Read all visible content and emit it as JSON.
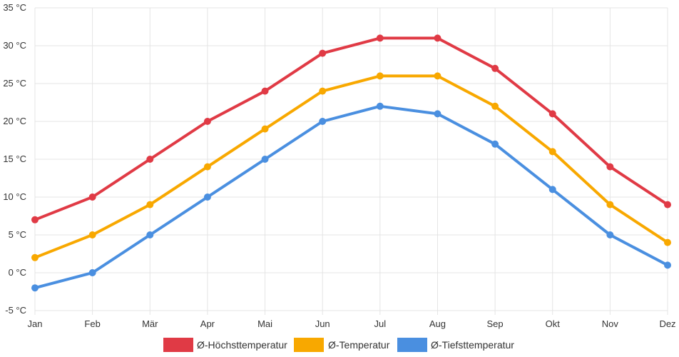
{
  "chart_data": {
    "type": "line",
    "title": "",
    "xlabel": "",
    "ylabel": "",
    "categories": [
      "Jan",
      "Feb",
      "Mär",
      "Apr",
      "Mai",
      "Jun",
      "Jul",
      "Aug",
      "Sep",
      "Okt",
      "Nov",
      "Dez"
    ],
    "y_unit": "°C",
    "ylim": [
      -5,
      35
    ],
    "ytick_step": 5,
    "y_tick_labels": [
      "-5 °C",
      "0 °C",
      "5 °C",
      "10 °C",
      "15 °C",
      "20 °C",
      "25 °C",
      "30 °C",
      "35 °C"
    ],
    "grid": true,
    "legend_position": "bottom-center",
    "series": [
      {
        "name": "Ø-Höchsttemperatur",
        "color": "#e03a45",
        "values": [
          7,
          10,
          15,
          20,
          24,
          29,
          31,
          31,
          27,
          21,
          14,
          9
        ]
      },
      {
        "name": "Ø-Temperatur",
        "color": "#f8a800",
        "values": [
          2,
          5,
          9,
          14,
          19,
          24,
          26,
          26,
          22,
          16,
          9,
          4
        ]
      },
      {
        "name": "Ø-Tiefsttemperatur",
        "color": "#4a8fe0",
        "values": [
          -2,
          0,
          5,
          10,
          15,
          20,
          22,
          21,
          17,
          11,
          5,
          1
        ]
      }
    ]
  }
}
